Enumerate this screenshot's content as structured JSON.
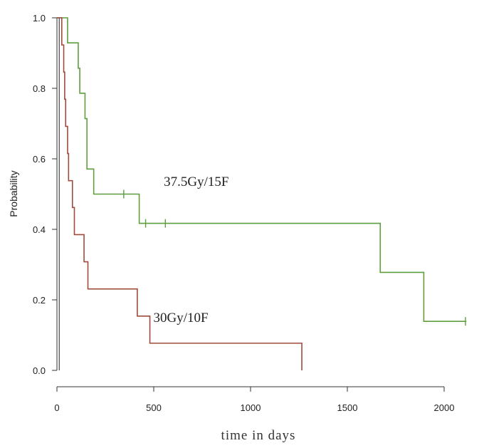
{
  "chart_data": {
    "type": "line",
    "title": "",
    "xlabel": "time in days",
    "ylabel": "Probability",
    "xlim": [
      0,
      2200
    ],
    "ylim": [
      0,
      1.0
    ],
    "x_ticks": [
      0,
      500,
      1000,
      1500,
      2000
    ],
    "x_tick_labels": [
      "0",
      "500",
      "1000",
      "1500",
      "2000"
    ],
    "y_ticks": [
      0.0,
      0.2,
      0.4,
      0.6,
      0.8,
      1.0
    ],
    "y_tick_labels": [
      "0.0",
      "0.2",
      "0.4",
      "0.6",
      "0.8",
      "1.0"
    ],
    "grid": false,
    "series": [
      {
        "name": "37.5Gy/15F",
        "color": "#5e9e3f",
        "steps": [
          {
            "x": 0,
            "y": 1.0
          },
          {
            "x": 55,
            "y": 0.929
          },
          {
            "x": 110,
            "y": 0.857
          },
          {
            "x": 118,
            "y": 0.786
          },
          {
            "x": 145,
            "y": 0.714
          },
          {
            "x": 155,
            "y": 0.571
          },
          {
            "x": 190,
            "y": 0.5
          },
          {
            "x": 425,
            "y": 0.417
          },
          {
            "x": 1670,
            "y": 0.278
          },
          {
            "x": 1895,
            "y": 0.139
          }
        ],
        "end_x": 2115,
        "censored": [
          {
            "x": 345,
            "y": 0.5
          },
          {
            "x": 458,
            "y": 0.417
          },
          {
            "x": 560,
            "y": 0.417
          },
          {
            "x": 2110,
            "y": 0.139
          }
        ]
      },
      {
        "name": "30Gy/10F",
        "color": "#a04a3c",
        "steps": [
          {
            "x": 0,
            "y": 1.0
          },
          {
            "x": 25,
            "y": 0.923
          },
          {
            "x": 35,
            "y": 0.846
          },
          {
            "x": 40,
            "y": 0.769
          },
          {
            "x": 45,
            "y": 0.692
          },
          {
            "x": 55,
            "y": 0.615
          },
          {
            "x": 60,
            "y": 0.538
          },
          {
            "x": 80,
            "y": 0.462
          },
          {
            "x": 90,
            "y": 0.385
          },
          {
            "x": 140,
            "y": 0.308
          },
          {
            "x": 160,
            "y": 0.231
          },
          {
            "x": 415,
            "y": 0.154
          },
          {
            "x": 480,
            "y": 0.077
          },
          {
            "x": 1265,
            "y": 0.0
          }
        ],
        "end_x": 1265,
        "censored": []
      }
    ],
    "annotations": [
      {
        "text": "37.5Gy/15F",
        "x": 720,
        "y": 0.535
      },
      {
        "text": "30Gy/10F",
        "x": 640,
        "y": 0.15
      }
    ]
  }
}
